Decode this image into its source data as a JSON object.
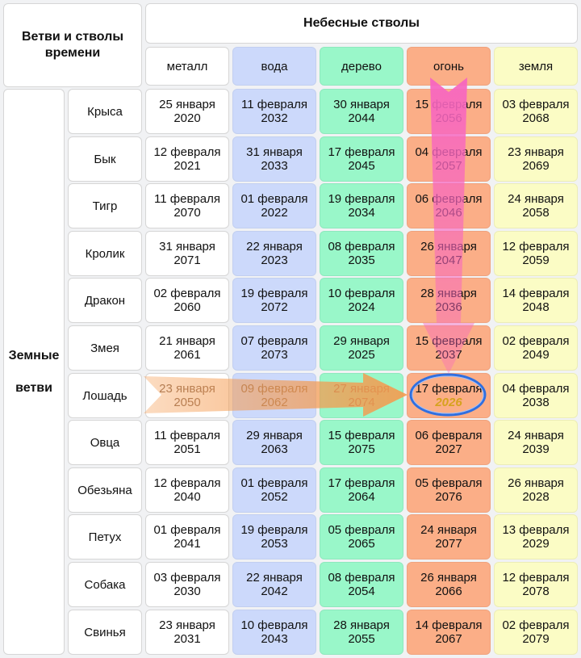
{
  "corner_title": "Ветви и стволы времени",
  "stems_title": "Небесные стволы",
  "branches_title": "Земные ветви",
  "stems": [
    {
      "label": "металл",
      "color": "#ffffff"
    },
    {
      "label": "вода",
      "color": "#ccd9fb"
    },
    {
      "label": "дерево",
      "color": "#99f7c9"
    },
    {
      "label": "огонь",
      "color": "#fbae87"
    },
    {
      "label": "земля",
      "color": "#fbfcc5"
    }
  ],
  "rows": [
    {
      "branch": "Крыса",
      "cells": [
        [
          "25 января",
          "2020"
        ],
        [
          "11 февраля",
          "2032"
        ],
        [
          "30 января",
          "2044"
        ],
        [
          "15 февраля",
          "2056"
        ],
        [
          "03 февраля",
          "2068"
        ]
      ]
    },
    {
      "branch": "Бык",
      "cells": [
        [
          "12 февраля",
          "2021"
        ],
        [
          "31 января",
          "2033"
        ],
        [
          "17 февраля",
          "2045"
        ],
        [
          "04 февраля",
          "2057"
        ],
        [
          "23 января",
          "2069"
        ]
      ]
    },
    {
      "branch": "Тигр",
      "cells": [
        [
          "11 февраля",
          "2070"
        ],
        [
          "01 февраля",
          "2022"
        ],
        [
          "19 февраля",
          "2034"
        ],
        [
          "06 февраля",
          "2046"
        ],
        [
          "24 января",
          "2058"
        ]
      ]
    },
    {
      "branch": "Кролик",
      "cells": [
        [
          "31 января",
          "2071"
        ],
        [
          "22 января",
          "2023"
        ],
        [
          "08 февраля",
          "2035"
        ],
        [
          "26 января",
          "2047"
        ],
        [
          "12 февраля",
          "2059"
        ]
      ]
    },
    {
      "branch": "Дракон",
      "cells": [
        [
          "02 февраля",
          "2060"
        ],
        [
          "19 февраля",
          "2072"
        ],
        [
          "10 февраля",
          "2024"
        ],
        [
          "28 января",
          "2036"
        ],
        [
          "14 февраля",
          "2048"
        ]
      ]
    },
    {
      "branch": "Змея",
      "cells": [
        [
          "21 января",
          "2061"
        ],
        [
          "07 февраля",
          "2073"
        ],
        [
          "29 января",
          "2025"
        ],
        [
          "15 февраля",
          "2037"
        ],
        [
          "02 февраля",
          "2049"
        ]
      ]
    },
    {
      "branch": "Лошадь",
      "cells": [
        [
          "23 января",
          "2050"
        ],
        [
          "09 февраля",
          "2062"
        ],
        [
          "27 января",
          "2074"
        ],
        [
          "17 февраля",
          "2026"
        ],
        [
          "04 февраля",
          "2038"
        ]
      ]
    },
    {
      "branch": "Овца",
      "cells": [
        [
          "11 февраля",
          "2051"
        ],
        [
          "29 января",
          "2063"
        ],
        [
          "15 февраля",
          "2075"
        ],
        [
          "06 февраля",
          "2027"
        ],
        [
          "24 января",
          "2039"
        ]
      ]
    },
    {
      "branch": "Обезьяна",
      "cells": [
        [
          "12 февраля",
          "2040"
        ],
        [
          "01 февраля",
          "2052"
        ],
        [
          "17 февраля",
          "2064"
        ],
        [
          "05 февраля",
          "2076"
        ],
        [
          "26 января",
          "2028"
        ]
      ]
    },
    {
      "branch": "Петух",
      "cells": [
        [
          "01 февраля",
          "2041"
        ],
        [
          "19 февраля",
          "2053"
        ],
        [
          "05 февраля",
          "2065"
        ],
        [
          "24 января",
          "2077"
        ],
        [
          "13 февраля",
          "2029"
        ]
      ]
    },
    {
      "branch": "Собака",
      "cells": [
        [
          "03 февраля",
          "2030"
        ],
        [
          "22 января",
          "2042"
        ],
        [
          "08 февраля",
          "2054"
        ],
        [
          "26 января",
          "2066"
        ],
        [
          "12 февраля",
          "2078"
        ]
      ]
    },
    {
      "branch": "Свинья",
      "cells": [
        [
          "23 января",
          "2031"
        ],
        [
          "10 февраля",
          "2043"
        ],
        [
          "28 января",
          "2055"
        ],
        [
          "14 февраля",
          "2067"
        ],
        [
          "02 февраля",
          "2079"
        ]
      ]
    }
  ],
  "highlight": {
    "row": 6,
    "col": 3
  },
  "colors": {
    "arrow_horizontal": "#f59a4e",
    "arrow_vertical": "#f766c0",
    "circle": "#2f6fe0",
    "highlight_year": "#d6a21e"
  }
}
